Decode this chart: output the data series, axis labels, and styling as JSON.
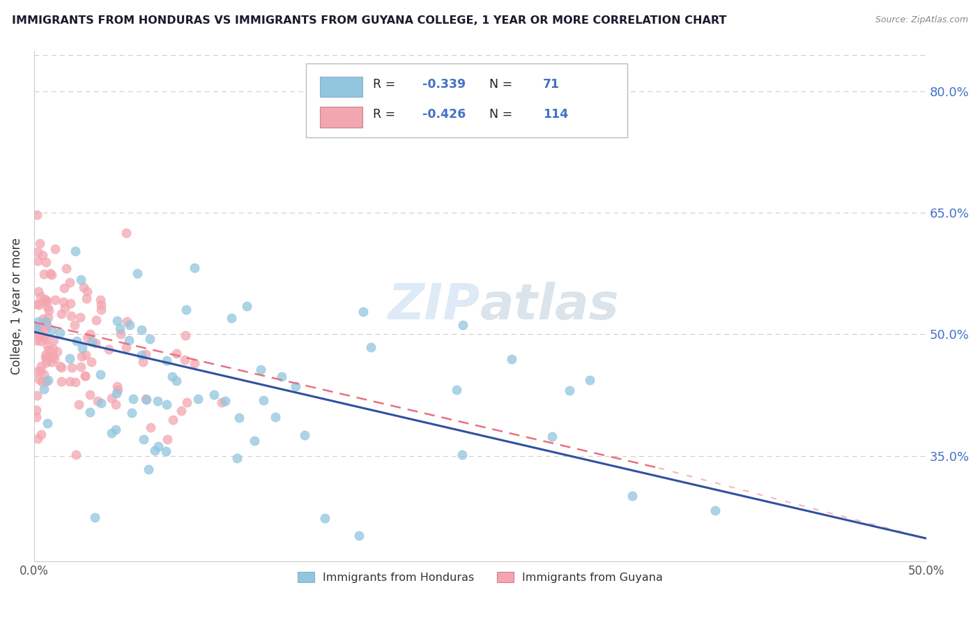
{
  "title": "IMMIGRANTS FROM HONDURAS VS IMMIGRANTS FROM GUYANA COLLEGE, 1 YEAR OR MORE CORRELATION CHART",
  "source": "Source: ZipAtlas.com",
  "ylabel": "College, 1 year or more",
  "xmin": 0.0,
  "xmax": 0.5,
  "ymin": 0.22,
  "ymax": 0.85,
  "yticks": [
    0.35,
    0.5,
    0.65,
    0.8
  ],
  "ytick_labels": [
    "35.0%",
    "50.0%",
    "65.0%",
    "80.0%"
  ],
  "R_honduras": -0.339,
  "N_honduras": 71,
  "R_guyana": -0.426,
  "N_guyana": 114,
  "color_honduras": "#92C5DE",
  "color_guyana": "#F4A6B0",
  "line_color_honduras": "#3050A0",
  "line_color_guyana": "#E87080",
  "legend_labels": [
    "Immigrants from Honduras",
    "Immigrants from Guyana"
  ],
  "watermark_color": "#C8DCF0",
  "title_color": "#1a1a2e",
  "source_color": "#888888",
  "grid_color": "#CCCCCC",
  "tick_label_color": "#4472C4"
}
